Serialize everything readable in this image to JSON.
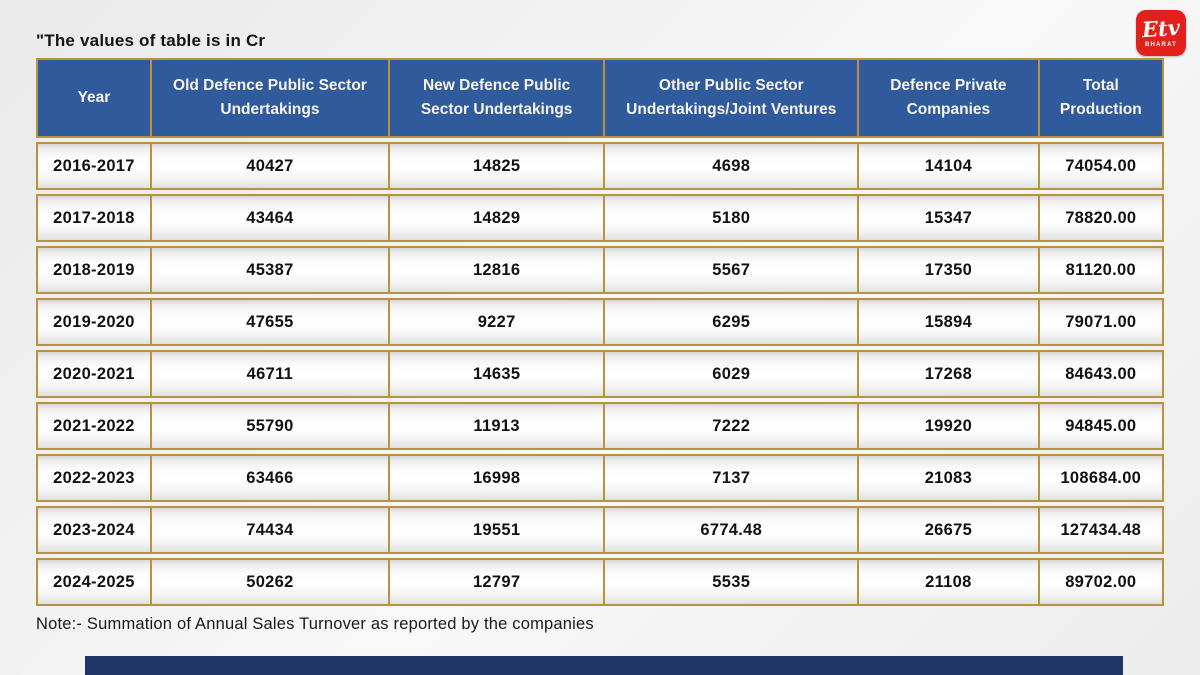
{
  "title": "\"The values of table is in Cr",
  "logo": {
    "mark": "Etv",
    "sub": "BHARAT"
  },
  "note": "Note:- Summation of Annual Sales Turnover as reported by the companies",
  "colors": {
    "header_blue": "#2f5b9c",
    "border_gold": "#b9923d",
    "logo_red": "#e2211c",
    "footer_navy": "#1f3566",
    "header_text": "#f7f3ea",
    "cell_text": "#121212"
  },
  "chart_data": {
    "type": "table",
    "title": "\"The values of table is in Cr",
    "unit": "Cr",
    "columns": [
      "Year",
      "Old Defence Public Sector Undertakings",
      "New Defence Public Sector Undertakings",
      "Other Public Sector Undertakings/Joint Ventures",
      "Defence Private Companies",
      "Total Production"
    ],
    "rows": [
      [
        "2016-2017",
        "40427",
        "14825",
        "4698",
        "14104",
        "74054.00"
      ],
      [
        "2017-2018",
        "43464",
        "14829",
        "5180",
        "15347",
        "78820.00"
      ],
      [
        "2018-2019",
        "45387",
        "12816",
        "5567",
        "17350",
        "81120.00"
      ],
      [
        "2019-2020",
        "47655",
        "9227",
        "6295",
        "15894",
        "79071.00"
      ],
      [
        "2020-2021",
        "46711",
        "14635",
        "6029",
        "17268",
        "84643.00"
      ],
      [
        "2021-2022",
        "55790",
        "11913",
        "7222",
        "19920",
        "94845.00"
      ],
      [
        "2022-2023",
        "63466",
        "16998",
        "7137",
        "21083",
        "108684.00"
      ],
      [
        "2023-2024",
        "74434",
        "19551",
        "6774.48",
        "26675",
        "127434.48"
      ],
      [
        "2024-2025",
        "50262",
        "12797",
        "5535",
        "21108",
        "89702.00"
      ]
    ],
    "note": "Note:- Summation of Annual Sales Turnover as reported by the companies"
  }
}
